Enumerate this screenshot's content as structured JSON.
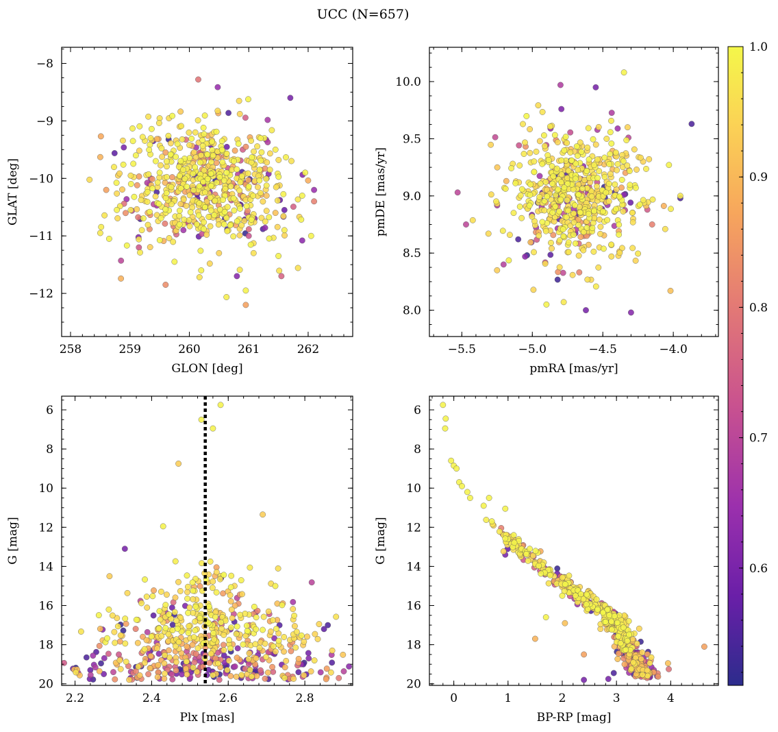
{
  "chart_data": {
    "title": "UCC (N=657)",
    "n_members": 657,
    "type": "scatter",
    "colorbar": {
      "range": [
        0.51,
        1.0
      ],
      "ticks": [
        "1.0",
        "0.9",
        "0.8",
        "0.7",
        "0.6"
      ],
      "tick_values": [
        1.0,
        0.9,
        0.8,
        0.7,
        0.6
      ],
      "colormap": [
        "#2c2c8c",
        "#6a1fa8",
        "#9b30ad",
        "#c9528f",
        "#e47b74",
        "#f7a65c",
        "#fbd355",
        "#f4f74a"
      ],
      "position": "right"
    },
    "panels": [
      {
        "name": "galactic-position",
        "type": "scatter",
        "xlabel": "GLON [deg]",
        "ylabel": "GLAT [deg]",
        "xlim": [
          257.85,
          262.75
        ],
        "ylim": [
          -12.75,
          -7.72
        ],
        "xticks": [
          "258",
          "259",
          "260",
          "261",
          "262"
        ],
        "xtick_values": [
          258,
          259,
          260,
          261,
          262
        ],
        "yticks": [
          "−8",
          "−9",
          "−10",
          "−11",
          "−12"
        ],
        "ytick_values": [
          -8,
          -9,
          -10,
          -11,
          -12
        ],
        "points": [
          [
            260.15,
            -10.2,
            0.98
          ],
          [
            260.3,
            -10.05,
            0.99
          ],
          [
            259.9,
            -10.1,
            0.97
          ],
          [
            260.6,
            -10.3,
            0.99
          ],
          [
            260.0,
            -9.8,
            0.95
          ],
          [
            260.4,
            -9.6,
            0.98
          ],
          [
            259.7,
            -10.4,
            0.92
          ],
          [
            260.8,
            -10.0,
            0.97
          ],
          [
            260.25,
            -10.5,
            0.96
          ],
          [
            259.5,
            -9.9,
            0.99
          ],
          [
            261.0,
            -9.7,
            0.94
          ],
          [
            259.3,
            -10.6,
            0.88
          ],
          [
            260.7,
            -10.8,
            0.97
          ],
          [
            259.8,
            -9.4,
            0.99
          ],
          [
            261.3,
            -10.3,
            0.9
          ],
          [
            258.6,
            -10.2,
            0.85
          ],
          [
            262.1,
            -10.4,
            0.8
          ],
          [
            260.5,
            -11.3,
            0.93
          ],
          [
            260.1,
            -9.2,
            0.96
          ],
          [
            261.2,
            -9.3,
            0.99
          ],
          [
            259.1,
            -9.6,
            0.99
          ],
          [
            259.2,
            -10.9,
            0.97
          ],
          [
            261.6,
            -10.9,
            0.98
          ],
          [
            261.7,
            -8.6,
            0.6
          ],
          [
            260.15,
            -8.28,
            0.78
          ],
          [
            260.95,
            -12.2,
            0.85
          ],
          [
            258.85,
            -11.43,
            0.7
          ],
          [
            259.6,
            -11.85,
            0.82
          ],
          [
            261.55,
            -11.7,
            0.75
          ],
          [
            258.5,
            -9.63,
            0.88
          ],
          [
            262.1,
            -10.2,
            0.65
          ],
          [
            261.9,
            -11.08,
            0.63
          ],
          [
            261.9,
            -10.3,
            0.99
          ],
          [
            258.5,
            -10.95,
            0.97
          ],
          [
            260.8,
            -11.7,
            0.62
          ],
          [
            260.6,
            -10.7,
            0.55
          ],
          [
            261.6,
            -10.55,
            0.58
          ],
          [
            261.3,
            -10.0,
            0.64
          ],
          [
            259.4,
            -10.45,
            0.7
          ],
          [
            259.9,
            -10.9,
            0.66
          ],
          [
            260.3,
            -10.45,
            0.6
          ],
          [
            261.0,
            -11.0,
            0.72
          ],
          [
            259.35,
            -10.0,
            0.68
          ],
          [
            260.9,
            -9.5,
            0.74
          ],
          [
            259.15,
            -11.2,
            0.73
          ],
          [
            261.1,
            -10.7,
            0.61
          ],
          [
            259.6,
            -9.55,
            0.85
          ],
          [
            261.45,
            -10.6,
            0.9
          ],
          [
            258.8,
            -9.95,
            0.93
          ],
          [
            260.2,
            -11.6,
            0.99
          ],
          [
            260.55,
            -9.35,
            0.99
          ],
          [
            261.45,
            -9.5,
            0.98
          ],
          [
            259.05,
            -9.35,
            0.99
          ],
          [
            260.75,
            -9.7,
            0.99
          ],
          [
            261.95,
            -9.9,
            0.99
          ],
          [
            259.75,
            -11.45,
            0.99
          ],
          [
            260.95,
            -11.95,
            0.99
          ],
          [
            258.65,
            -11.05,
            0.99
          ],
          [
            261.5,
            -11.35,
            0.99
          ],
          [
            262.05,
            -11.0,
            0.99
          ]
        ]
      },
      {
        "name": "proper-motion",
        "type": "scatter",
        "xlabel": "pmRA [mas/yr]",
        "ylabel": "pmDE [mas/yr]",
        "xlim": [
          -5.73,
          -3.68
        ],
        "ylim": [
          7.77,
          10.3
        ],
        "xticks": [
          "−5.5",
          "−5.0",
          "−4.5",
          "−4.0"
        ],
        "xtick_values": [
          -5.5,
          -5.0,
          -4.5,
          -4.0
        ],
        "yticks": [
          "10.0",
          "9.5",
          "9.0",
          "8.5",
          "8.0"
        ],
        "ytick_values": [
          10.0,
          9.5,
          9.0,
          8.5,
          8.0
        ],
        "points": [
          [
            -4.35,
            10.08,
            0.99
          ],
          [
            -3.87,
            9.63,
            0.55
          ],
          [
            -5.53,
            9.03,
            0.7
          ],
          [
            -4.62,
            8.0,
            0.6
          ],
          [
            -4.3,
            7.98,
            0.62
          ],
          [
            -4.02,
            8.17,
            0.9
          ],
          [
            -4.8,
            9.97,
            0.68
          ],
          [
            -4.55,
            9.95,
            0.6
          ],
          [
            -5.25,
            8.35,
            0.92
          ],
          [
            -3.95,
            9.0,
            0.97
          ],
          [
            -3.95,
            8.98,
            0.55
          ],
          [
            -4.15,
            8.75,
            0.8
          ],
          [
            -5.47,
            8.75,
            0.7
          ],
          [
            -5.1,
            8.62,
            0.55
          ],
          [
            -4.9,
            8.05,
            0.99
          ]
        ]
      },
      {
        "name": "parallax-magnitude",
        "type": "scatter",
        "xlabel": "Plx [mas]",
        "ylabel": "G [mag]",
        "xlim": [
          2.165,
          2.925
        ],
        "ylim": [
          20.08,
          5.3
        ],
        "invert_y": true,
        "vline": 2.54,
        "xticks": [
          "2.2",
          "2.4",
          "2.6",
          "2.8"
        ],
        "xtick_values": [
          2.2,
          2.4,
          2.6,
          2.8
        ],
        "yticks": [
          "6",
          "8",
          "10",
          "12",
          "14",
          "16",
          "18",
          "20"
        ],
        "ytick_values": [
          6,
          8,
          10,
          12,
          14,
          16,
          18,
          20
        ],
        "points": [
          [
            2.58,
            5.75,
            0.99
          ],
          [
            2.53,
            6.5,
            0.99
          ],
          [
            2.56,
            6.95,
            0.99
          ],
          [
            2.47,
            8.75,
            0.92
          ],
          [
            2.69,
            11.35,
            0.92
          ],
          [
            2.33,
            13.1,
            0.6
          ],
          [
            2.29,
            14.5,
            0.92
          ],
          [
            2.43,
            11.95,
            0.99
          ],
          [
            2.23,
            18.65,
            0.55
          ],
          [
            2.86,
            17.0,
            0.55
          ],
          [
            2.85,
            17.2,
            0.57
          ],
          [
            2.81,
            18.7,
            0.62
          ],
          [
            2.24,
            19.3,
            0.58
          ],
          [
            2.79,
            19.0,
            0.65
          ],
          [
            2.3,
            19.4,
            0.7
          ]
        ]
      },
      {
        "name": "color-magnitude",
        "type": "scatter",
        "xlabel": "BP-RP [mag]",
        "ylabel": "G [mag]",
        "xlim": [
          -0.45,
          4.88
        ],
        "ylim": [
          20.08,
          5.3
        ],
        "invert_y": true,
        "xticks": [
          "0",
          "1",
          "2",
          "3",
          "4"
        ],
        "xtick_values": [
          0,
          1,
          2,
          3,
          4
        ],
        "yticks": [
          "6",
          "8",
          "10",
          "12",
          "14",
          "16",
          "18",
          "20"
        ],
        "ytick_values": [
          6,
          8,
          10,
          12,
          14,
          16,
          18,
          20
        ],
        "points": [
          [
            -0.2,
            5.75,
            0.99
          ],
          [
            -0.15,
            6.45,
            0.99
          ],
          [
            -0.16,
            6.95,
            0.99
          ],
          [
            -0.05,
            8.6,
            0.99
          ],
          [
            0.0,
            8.85,
            0.99
          ],
          [
            0.05,
            9.0,
            0.99
          ],
          [
            0.1,
            9.7,
            0.99
          ],
          [
            0.15,
            9.9,
            0.99
          ],
          [
            0.25,
            10.2,
            0.99
          ],
          [
            0.3,
            10.5,
            0.99
          ],
          [
            0.55,
            10.9,
            0.99
          ],
          [
            0.65,
            10.5,
            0.99
          ],
          [
            0.7,
            11.7,
            0.99
          ],
          [
            0.95,
            11.05,
            0.99
          ],
          [
            0.95,
            13.4,
            0.6
          ],
          [
            1.0,
            12.6,
            0.99
          ],
          [
            1.2,
            12.7,
            0.99
          ],
          [
            1.4,
            13.1,
            0.99
          ],
          [
            1.55,
            13.3,
            0.99
          ],
          [
            1.5,
            17.7,
            0.88
          ],
          [
            1.7,
            16.6,
            0.99
          ],
          [
            2.0,
            15.5,
            0.99
          ],
          [
            2.05,
            16.9,
            0.9
          ],
          [
            2.4,
            18.5,
            0.85
          ],
          [
            2.4,
            19.8,
            0.6
          ],
          [
            4.62,
            18.1,
            0.85
          ],
          [
            3.95,
            18.95,
            0.9
          ],
          [
            2.85,
            19.75,
            0.6
          ],
          [
            2.95,
            19.45,
            0.55
          ],
          [
            3.4,
            19.3,
            0.62
          ]
        ]
      }
    ]
  }
}
